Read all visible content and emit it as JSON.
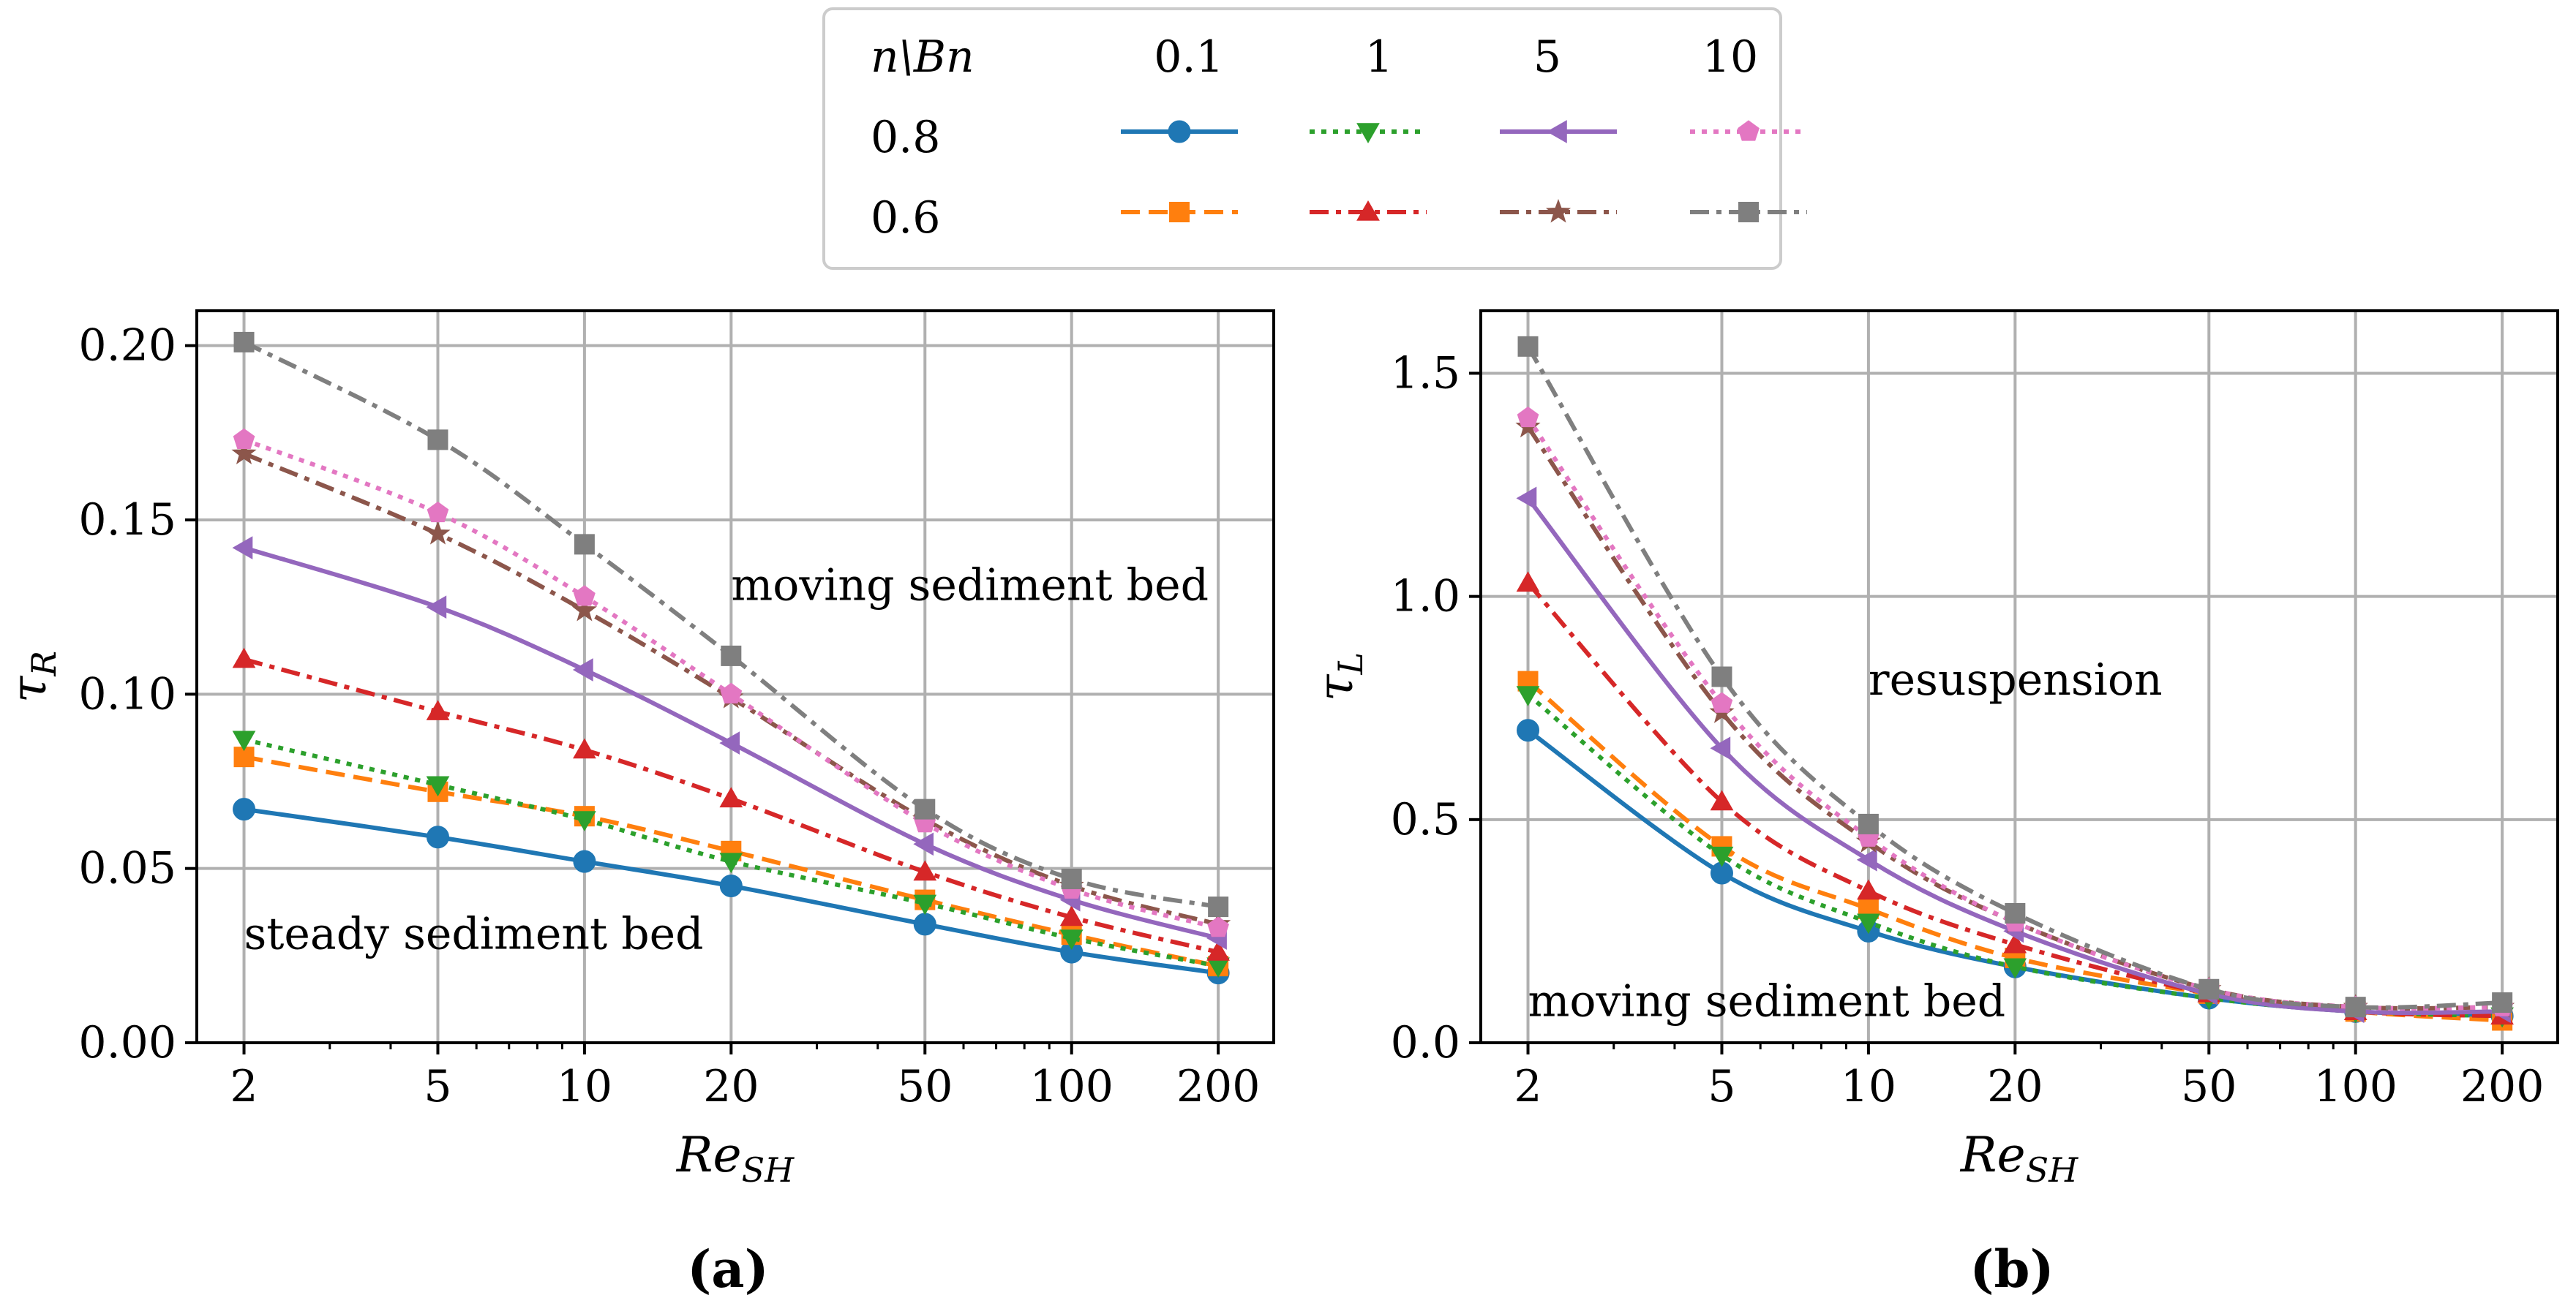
{
  "chart_data": [
    {
      "panel_label": "(a)",
      "type": "line",
      "xscale": "log",
      "ylabel": "τ",
      "ylabel_sub": "R",
      "xlabel": "Re",
      "xlabel_sub": "SH",
      "x": [
        2,
        5,
        10,
        20,
        50,
        100,
        200
      ],
      "x_tick_labels": [
        "2",
        "5",
        "10",
        "20",
        "50",
        "100",
        "200"
      ],
      "xlim": [
        1.6,
        260
      ],
      "ylim": [
        0.0,
        0.21
      ],
      "y_ticks": [
        0.0,
        0.05,
        0.1,
        0.15,
        0.2
      ],
      "y_tick_labels": [
        "0.00",
        "0.05",
        "0.10",
        "0.15",
        "0.20"
      ],
      "grid": true,
      "annotations": [
        {
          "text": "moving sediment bed",
          "x": 20,
          "y": 0.127,
          "anchor": "start"
        },
        {
          "text": "steady sediment bed",
          "x": 2,
          "y": 0.027,
          "anchor": "start"
        }
      ],
      "series": [
        {
          "name": "n=0.8, Bn=0.1",
          "values": [
            0.067,
            0.059,
            0.052,
            0.045,
            0.034,
            0.026,
            0.02
          ]
        },
        {
          "name": "n=0.6, Bn=0.1",
          "values": [
            0.082,
            0.072,
            0.065,
            0.055,
            0.041,
            0.031,
            0.022
          ]
        },
        {
          "name": "n=0.8, Bn=1",
          "values": [
            0.087,
            0.074,
            0.064,
            0.052,
            0.04,
            0.03,
            0.022
          ]
        },
        {
          "name": "n=0.6, Bn=1",
          "values": [
            0.11,
            0.095,
            0.084,
            0.07,
            0.049,
            0.036,
            0.026
          ]
        },
        {
          "name": "n=0.8, Bn=5",
          "values": [
            0.142,
            0.125,
            0.107,
            0.086,
            0.057,
            0.041,
            0.03
          ]
        },
        {
          "name": "n=0.6, Bn=5",
          "values": [
            0.169,
            0.146,
            0.124,
            0.099,
            0.064,
            0.045,
            0.034
          ]
        },
        {
          "name": "n=0.8, Bn=10",
          "values": [
            0.173,
            0.152,
            0.128,
            0.1,
            0.063,
            0.044,
            0.033
          ]
        },
        {
          "name": "n=0.6, Bn=10",
          "values": [
            0.201,
            0.173,
            0.143,
            0.111,
            0.067,
            0.047,
            0.039
          ]
        }
      ]
    },
    {
      "panel_label": "(b)",
      "type": "line",
      "xscale": "log",
      "ylabel": "τ",
      "ylabel_sub": "L",
      "xlabel": "Re",
      "xlabel_sub": "SH",
      "x": [
        2,
        5,
        10,
        20,
        50,
        100,
        200
      ],
      "x_tick_labels": [
        "2",
        "5",
        "10",
        "20",
        "50",
        "100",
        "200"
      ],
      "xlim": [
        1.6,
        260
      ],
      "ylim": [
        0.0,
        1.64
      ],
      "y_ticks": [
        0.0,
        0.5,
        1.0,
        1.5
      ],
      "y_tick_labels": [
        "0.0",
        "0.5",
        "1.0",
        "1.5"
      ],
      "grid": true,
      "annotations": [
        {
          "text": "resuspension",
          "x": 10,
          "y": 0.78,
          "anchor": "start"
        },
        {
          "text": "moving sediment bed",
          "x": 2,
          "y": 0.06,
          "anchor": "start"
        }
      ],
      "series": [
        {
          "name": "n=0.8, Bn=0.1",
          "values": [
            0.7,
            0.38,
            0.25,
            0.17,
            0.1,
            0.07,
            0.06
          ]
        },
        {
          "name": "n=0.6, Bn=0.1",
          "values": [
            0.81,
            0.44,
            0.3,
            0.19,
            0.11,
            0.07,
            0.05
          ]
        },
        {
          "name": "n=0.8, Bn=1",
          "values": [
            0.78,
            0.42,
            0.27,
            0.17,
            0.1,
            0.07,
            0.06
          ]
        },
        {
          "name": "n=0.6, Bn=1",
          "values": [
            1.03,
            0.54,
            0.34,
            0.22,
            0.11,
            0.07,
            0.06
          ]
        },
        {
          "name": "n=0.8, Bn=5",
          "values": [
            1.22,
            0.66,
            0.41,
            0.25,
            0.11,
            0.07,
            0.07
          ]
        },
        {
          "name": "n=0.6, Bn=5",
          "values": [
            1.38,
            0.74,
            0.45,
            0.27,
            0.12,
            0.08,
            0.08
          ]
        },
        {
          "name": "n=0.8, Bn=10",
          "values": [
            1.4,
            0.76,
            0.46,
            0.27,
            0.12,
            0.08,
            0.08
          ]
        },
        {
          "name": "n=0.6, Bn=10",
          "values": [
            1.56,
            0.82,
            0.49,
            0.29,
            0.12,
            0.08,
            0.09
          ]
        }
      ]
    }
  ],
  "legend": {
    "header_label": "n\\Bn",
    "bn_values": [
      "0.1",
      "1",
      "5",
      "10"
    ],
    "n_values": [
      "0.8",
      "0.6"
    ]
  },
  "styles": [
    {
      "color": "#1f77b4",
      "dash": "solid",
      "marker": "circle"
    },
    {
      "color": "#ff7f0e",
      "dash": "dashed",
      "marker": "square"
    },
    {
      "color": "#2ca02c",
      "dash": "dotted",
      "marker": "triangle-down"
    },
    {
      "color": "#d62728",
      "dash": "dashdot",
      "marker": "triangle-up"
    },
    {
      "color": "#9467bd",
      "dash": "solid",
      "marker": "triangle-left"
    },
    {
      "color": "#8c564b",
      "dash": "dashdot",
      "marker": "star"
    },
    {
      "color": "#e377c2",
      "dash": "dotted",
      "marker": "pentagon"
    },
    {
      "color": "#7f7f7f",
      "dash": "dashdot",
      "marker": "square"
    }
  ]
}
